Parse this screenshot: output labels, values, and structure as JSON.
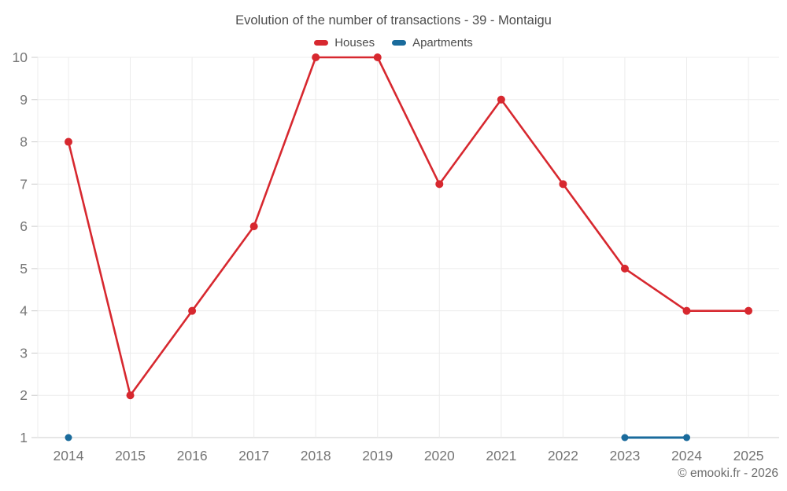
{
  "title": "Evolution of the number of transactions - 39 - Montaigu",
  "footer": "© emooki.fr - 2026",
  "legend": {
    "items": [
      {
        "label": "Houses",
        "color": "#d7282f"
      },
      {
        "label": "Apartments",
        "color": "#1a6b9c"
      }
    ]
  },
  "colors": {
    "houses": "#d7282f",
    "apartments": "#1a6b9c",
    "grid": "#ececec",
    "axis": "#cccccc",
    "tick_label": "#757575",
    "title_text": "#4c4c4c",
    "footer_text": "#6c6c6c"
  },
  "chart_data": {
    "type": "line",
    "title": "Evolution of the number of transactions - 39 - Montaigu",
    "x": [
      "2014",
      "2015",
      "2016",
      "2017",
      "2018",
      "2019",
      "2020",
      "2021",
      "2022",
      "2023",
      "2024",
      "2025"
    ],
    "series": [
      {
        "name": "Houses",
        "color": "#d7282f",
        "line_width": 2.6,
        "marker_radius": 5,
        "values": [
          8,
          2,
          4,
          6,
          10,
          10,
          7,
          9,
          7,
          5,
          4,
          4
        ]
      },
      {
        "name": "Apartments",
        "color": "#1a6b9c",
        "line_width": 3,
        "marker_radius": 4.5,
        "values": [
          1,
          null,
          null,
          null,
          null,
          null,
          null,
          null,
          null,
          1,
          1,
          null
        ]
      }
    ],
    "ylim": [
      1,
      10
    ],
    "yticks": [
      1,
      2,
      3,
      4,
      5,
      6,
      7,
      8,
      9,
      10
    ],
    "grid": true,
    "legend_position": "top",
    "xlabel": "",
    "ylabel": ""
  }
}
